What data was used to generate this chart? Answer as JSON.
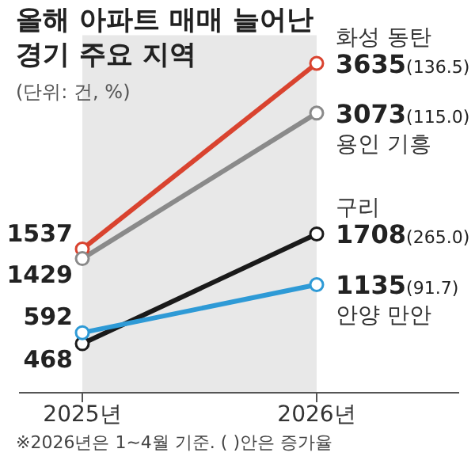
{
  "chart_data": {
    "type": "line",
    "title": "올해 아파트 매매 늘어난 경기 주요 지역",
    "subtitle": "(단위: 건, %)",
    "categories": [
      "2025년",
      "2026년"
    ],
    "series": [
      {
        "name": "화성 동탄",
        "color": "#d9432f",
        "values": [
          1537,
          3635
        ],
        "value_labels": [
          "1537",
          "3635(136.5)"
        ]
      },
      {
        "name": "용인 기흥",
        "color": "#8a8a8a",
        "values": [
          1429,
          3073
        ],
        "value_labels": [
          "1429",
          "3073(115.0)"
        ]
      },
      {
        "name": "구리",
        "color": "#1a1a1a",
        "values": [
          468,
          1708
        ],
        "value_labels": [
          "468",
          "1708(265.0)"
        ]
      },
      {
        "name": "안양 만안",
        "color": "#2e9ad6",
        "values": [
          592,
          1135
        ],
        "value_labels": [
          "592",
          "1135(91.7)"
        ]
      }
    ],
    "bands": [
      {
        "axis": "x",
        "from": "2025년",
        "to": "2026년",
        "color": "#e8e8e8"
      }
    ],
    "marker": "circle",
    "line_style": "solid",
    "legend": false,
    "grid": false,
    "annotations": [
      "※2026년은 1~4월 기준. ( )안은 증가율"
    ]
  }
}
